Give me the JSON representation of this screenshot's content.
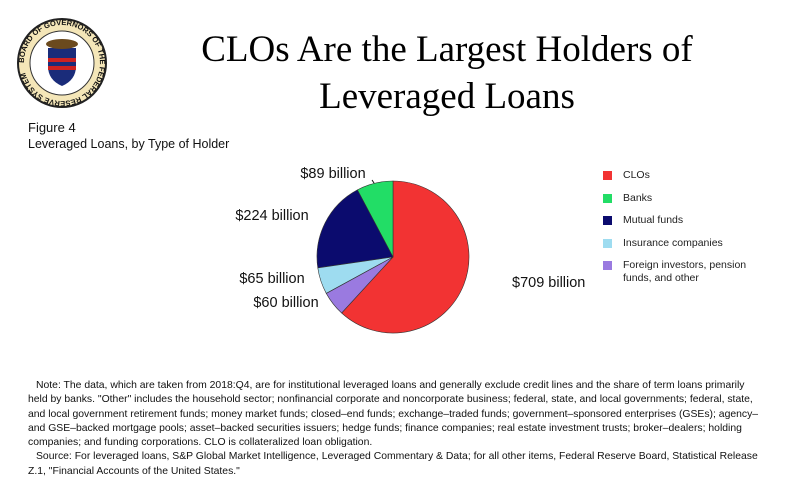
{
  "seal_text": "BOARD OF GOVERNORS OF THE FEDERAL RESERVE SYSTEM",
  "chart_data": {
    "type": "pie",
    "title": "CLOs Are the Largest Holders of Leveraged Loans",
    "figure_label": "Figure 4",
    "subtitle": "Leveraged Loans, by Type of Holder",
    "categories": [
      "CLOs",
      "Banks",
      "Mutual funds",
      "Insurance companies",
      "Foreign investors, pension funds, and other"
    ],
    "values": [
      709,
      89,
      224,
      65,
      60
    ],
    "value_labels": [
      "$709 billion",
      "$89 billion",
      "$224 billion",
      "$65 billion",
      "$60 billion"
    ],
    "colors": [
      "#f23333",
      "#22dd66",
      "#0b0b6e",
      "#9edcf0",
      "#9a7ae0"
    ],
    "notes": [
      "Note: The data, which are taken from 2018:Q4, are for institutional leveraged loans and generally exclude credit lines and the share of term loans primarily held by banks. \"Other\" includes the household sector; nonfinancial corporate and noncorporate business; federal, state, and local governments; federal, state, and local government retirement funds; money market funds; closed–end funds; exchange–traded funds; government–sponsored enterprises (GSEs); agency– and GSE–backed mortgage pools; asset–backed securities issuers; hedge funds; finance companies; real estate investment trusts; broker–dealers; holding companies; and funding corporations. CLO is collateralized loan obligation.",
      "Source: For leveraged loans, S&P Global Market Intelligence, Leveraged Commentary & Data; for all other items, Federal Reserve Board, Statistical Release Z.1, \"Financial Accounts of the United States.\""
    ]
  }
}
